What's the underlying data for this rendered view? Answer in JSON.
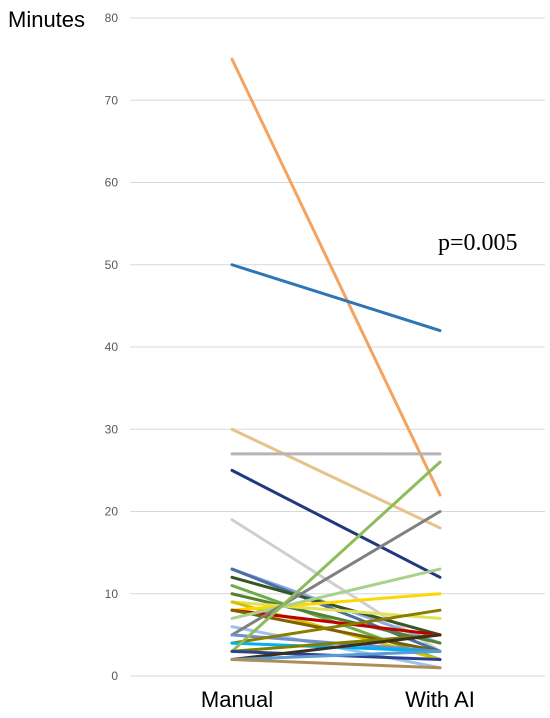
{
  "chart_data": {
    "type": "line",
    "ylabel": "Minutes",
    "categories": [
      "Manual",
      "With AI"
    ],
    "ylim": [
      0,
      80
    ],
    "yticks": [
      0,
      10,
      20,
      30,
      40,
      50,
      60,
      70,
      80
    ],
    "grid": true,
    "annotation": "p=0.005",
    "series": [
      {
        "values": [
          75,
          22
        ],
        "color": "#f4a460"
      },
      {
        "values": [
          50,
          42
        ],
        "color": "#2e75b6"
      },
      {
        "values": [
          30,
          18
        ],
        "color": "#e6c38a"
      },
      {
        "values": [
          27,
          27
        ],
        "color": "#b4b4b4"
      },
      {
        "values": [
          25,
          12
        ],
        "color": "#203880"
      },
      {
        "values": [
          19,
          3
        ],
        "color": "#cfcfcf"
      },
      {
        "values": [
          13,
          4
        ],
        "color": "#8ea9db"
      },
      {
        "values": [
          13,
          3
        ],
        "color": "#4a6fa5"
      },
      {
        "values": [
          12,
          5
        ],
        "color": "#375623"
      },
      {
        "values": [
          11,
          2
        ],
        "color": "#70ad47"
      },
      {
        "values": [
          10,
          4
        ],
        "color": "#548235"
      },
      {
        "values": [
          9,
          7
        ],
        "color": "#e2e25a"
      },
      {
        "values": [
          9,
          2
        ],
        "color": "#d4c300"
      },
      {
        "values": [
          8,
          10
        ],
        "color": "#ffd700"
      },
      {
        "values": [
          8,
          5
        ],
        "color": "#c00000"
      },
      {
        "values": [
          8,
          3
        ],
        "color": "#7f6000"
      },
      {
        "values": [
          7,
          13
        ],
        "color": "#a9d18e"
      },
      {
        "values": [
          6,
          1
        ],
        "color": "#9dc3e6"
      },
      {
        "values": [
          5,
          20
        ],
        "color": "#808080"
      },
      {
        "values": [
          5,
          3
        ],
        "color": "#6f8fd0"
      },
      {
        "values": [
          4,
          8
        ],
        "color": "#8b7d00"
      },
      {
        "values": [
          4,
          3
        ],
        "color": "#00b0f0"
      },
      {
        "values": [
          3,
          26
        ],
        "color": "#8fbc5a"
      },
      {
        "values": [
          3,
          5
        ],
        "color": "#7f7f00"
      },
      {
        "values": [
          3,
          2
        ],
        "color": "#2f3f8f"
      },
      {
        "values": [
          2,
          5
        ],
        "color": "#3b2f1e"
      },
      {
        "values": [
          2,
          3
        ],
        "color": "#5b9bd5"
      },
      {
        "values": [
          2,
          1
        ],
        "color": "#b08d57"
      }
    ]
  }
}
